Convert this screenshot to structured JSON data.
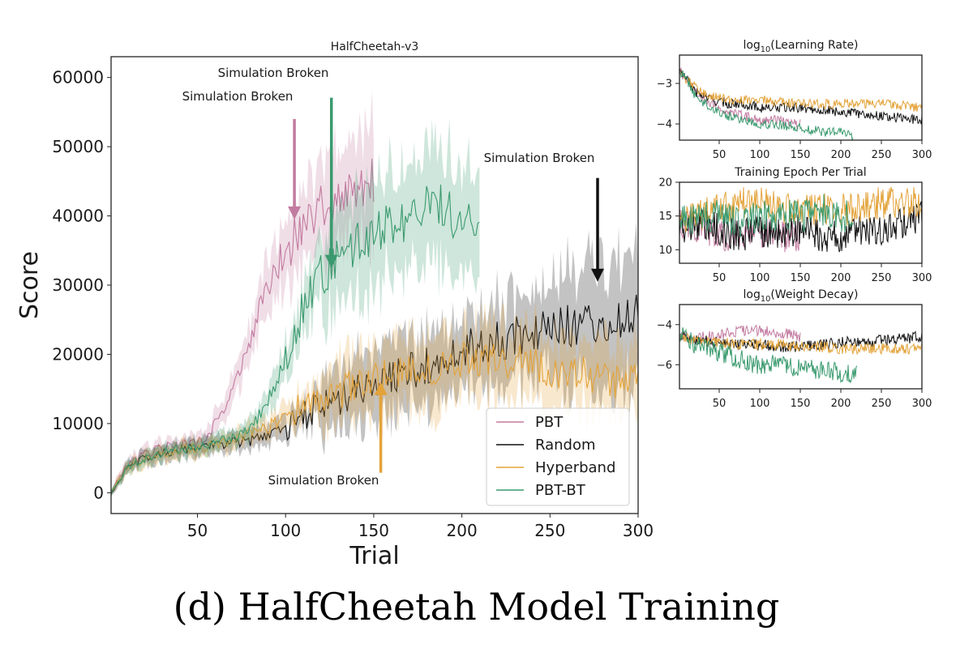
{
  "figure": {
    "caption": "(d) HalfCheetah Model Training"
  },
  "colors": {
    "PBT": "#c27ba0",
    "Random": "#111111",
    "Hyperband": "#e3a33a",
    "PBT-BT": "#3a9a6e"
  },
  "chart_data": [
    {
      "id": "main",
      "type": "line",
      "title": "HalfCheetah-v3",
      "xlabel": "Trial",
      "ylabel": "Score",
      "xlim": [
        1,
        300
      ],
      "ylim": [
        -3000,
        63000
      ],
      "xticks": [
        50,
        100,
        150,
        200,
        250,
        300
      ],
      "yticks": [
        0,
        10000,
        20000,
        30000,
        40000,
        50000,
        60000
      ],
      "grid": false,
      "legend": {
        "position": "bottom-right",
        "entries": [
          "PBT",
          "Random",
          "Hyperband",
          "PBT-BT"
        ]
      },
      "series": [
        {
          "name": "PBT",
          "band": true,
          "x": [
            1,
            10,
            20,
            30,
            40,
            50,
            55,
            60,
            70,
            80,
            90,
            100,
            110,
            120,
            130,
            140,
            150
          ],
          "values": [
            0,
            4000,
            5500,
            6500,
            7000,
            7200,
            7600,
            10000,
            15000,
            22000,
            30000,
            35000,
            38000,
            41000,
            42000,
            44000,
            45000
          ]
        },
        {
          "name": "Random",
          "band": true,
          "x": [
            1,
            10,
            20,
            30,
            40,
            50,
            60,
            70,
            80,
            90,
            100,
            110,
            120,
            130,
            140,
            150,
            160,
            170,
            180,
            190,
            200,
            210,
            220,
            230,
            240,
            250,
            260,
            270,
            280,
            290,
            300
          ],
          "values": [
            0,
            3500,
            5000,
            5800,
            6200,
            6500,
            7000,
            7200,
            7500,
            8500,
            9500,
            11000,
            12500,
            13500,
            14500,
            15500,
            16500,
            17500,
            18500,
            19500,
            20500,
            21500,
            22000,
            22500,
            23000,
            23500,
            24000,
            24500,
            25000,
            25500,
            26000
          ]
        },
        {
          "name": "Hyperband",
          "band": true,
          "x": [
            1,
            10,
            20,
            30,
            40,
            50,
            60,
            70,
            80,
            90,
            100,
            110,
            120,
            130,
            140,
            150,
            160,
            170,
            180,
            190,
            200,
            210,
            220,
            230,
            240,
            250,
            260,
            270,
            280,
            290,
            300
          ],
          "values": [
            0,
            3500,
            5000,
            5800,
            6200,
            6500,
            7000,
            7500,
            8500,
            9500,
            11000,
            12500,
            13500,
            14500,
            15500,
            16000,
            17000,
            17500,
            18000,
            18500,
            19000,
            19500,
            19500,
            19000,
            18500,
            18000,
            17500,
            17000,
            16500,
            16000,
            16500
          ]
        },
        {
          "name": "PBT-BT",
          "band": true,
          "x": [
            1,
            10,
            20,
            30,
            40,
            50,
            60,
            70,
            80,
            90,
            100,
            110,
            120,
            130,
            140,
            150,
            160,
            170,
            180,
            190,
            200,
            210
          ],
          "values": [
            0,
            3500,
            5000,
            5800,
            6300,
            6800,
            7200,
            7800,
            9500,
            13000,
            20000,
            27000,
            31000,
            34000,
            36000,
            38000,
            39000,
            40000,
            42000,
            41000,
            39000,
            38000
          ]
        }
      ],
      "annotations": [
        {
          "text": "Simulation Broken",
          "series": "PBT",
          "x": 105,
          "y": 39500
        },
        {
          "text": "Simulation Broken",
          "series": "PBT-BT",
          "x": 126,
          "y": 32500
        },
        {
          "text": "Simulation Broken",
          "series": "Random",
          "x": 277,
          "y": 30500
        },
        {
          "text": "Simulation Broken",
          "series": "Hyperband",
          "x": 154,
          "y": 16000
        }
      ]
    },
    {
      "id": "lr",
      "type": "line",
      "title": "log10(Learning Rate)",
      "title_base": "log",
      "title_sub": "10",
      "title_rest": "(Learning Rate)",
      "xlim": [
        1,
        300
      ],
      "ylim": [
        -4.4,
        -2.3
      ],
      "xticks": [
        50,
        100,
        150,
        200,
        250,
        300
      ],
      "yticks": [
        -3,
        -4
      ],
      "ytick_labels": [
        "−3",
        "−4"
      ],
      "series": [
        {
          "name": "PBT",
          "x": [
            1,
            10,
            20,
            40,
            60,
            80,
            100,
            120,
            140,
            150
          ],
          "values": [
            -2.7,
            -2.9,
            -3.2,
            -3.5,
            -3.7,
            -3.8,
            -3.9,
            -3.9,
            -4.0,
            -4.0
          ]
        },
        {
          "name": "Random",
          "x": [
            1,
            10,
            20,
            40,
            60,
            80,
            100,
            120,
            150,
            200,
            250,
            300
          ],
          "values": [
            -2.7,
            -2.9,
            -3.2,
            -3.4,
            -3.5,
            -3.5,
            -3.6,
            -3.6,
            -3.6,
            -3.7,
            -3.8,
            -3.9
          ]
        },
        {
          "name": "Hyperband",
          "x": [
            1,
            10,
            20,
            40,
            60,
            80,
            100,
            150,
            200,
            250,
            300
          ],
          "values": [
            -2.7,
            -2.9,
            -3.1,
            -3.3,
            -3.4,
            -3.4,
            -3.4,
            -3.5,
            -3.5,
            -3.5,
            -3.6
          ]
        },
        {
          "name": "PBT-BT",
          "x": [
            1,
            10,
            20,
            40,
            60,
            80,
            100,
            120,
            150,
            180,
            200,
            215
          ],
          "values": [
            -2.7,
            -2.9,
            -3.3,
            -3.6,
            -3.8,
            -3.9,
            -4.0,
            -4.0,
            -4.1,
            -4.2,
            -4.2,
            -4.3
          ]
        }
      ]
    },
    {
      "id": "epoch",
      "type": "line",
      "title": "Training Epoch Per Trial",
      "xlim": [
        1,
        300
      ],
      "ylim": [
        8,
        20
      ],
      "xticks": [
        50,
        100,
        150,
        200,
        250,
        300
      ],
      "yticks": [
        10,
        15,
        20
      ],
      "series": [
        {
          "name": "PBT",
          "x": [
            1,
            30,
            60,
            90,
            120,
            150
          ],
          "values": [
            14,
            13,
            12,
            13,
            12,
            12
          ]
        },
        {
          "name": "Random",
          "x": [
            1,
            25,
            50,
            75,
            100,
            125,
            150,
            175,
            200,
            225,
            250,
            275,
            300
          ],
          "values": [
            13,
            14,
            13,
            12,
            13,
            12,
            13,
            12,
            12,
            13,
            13,
            14,
            15
          ]
        },
        {
          "name": "Hyperband",
          "x": [
            1,
            25,
            50,
            75,
            100,
            125,
            150,
            175,
            200,
            225,
            250,
            275,
            300
          ],
          "values": [
            14,
            15,
            16,
            17,
            17,
            16,
            16,
            16,
            16,
            16,
            17,
            17,
            17
          ]
        },
        {
          "name": "PBT-BT",
          "x": [
            1,
            25,
            50,
            75,
            100,
            125,
            150,
            175,
            200,
            215
          ],
          "values": [
            14,
            15,
            15,
            14,
            15,
            15,
            15,
            16,
            15,
            15
          ]
        }
      ]
    },
    {
      "id": "wd",
      "type": "line",
      "title": "log10(Weight Decay)",
      "title_base": "log",
      "title_sub": "10",
      "title_rest": "(Weight Decay)",
      "xlim": [
        1,
        300
      ],
      "ylim": [
        -7.2,
        -3.0
      ],
      "xticks": [
        50,
        100,
        150,
        200,
        250,
        300
      ],
      "yticks": [
        -4,
        -6
      ],
      "ytick_labels": [
        "−4",
        "−6"
      ],
      "series": [
        {
          "name": "PBT",
          "x": [
            1,
            20,
            40,
            60,
            80,
            100,
            120,
            140,
            150
          ],
          "values": [
            -4.5,
            -4.7,
            -4.5,
            -4.4,
            -4.3,
            -4.3,
            -4.4,
            -4.5,
            -4.6
          ]
        },
        {
          "name": "Random",
          "x": [
            1,
            25,
            50,
            75,
            100,
            125,
            150,
            175,
            200,
            225,
            250,
            275,
            300
          ],
          "values": [
            -4.6,
            -4.8,
            -4.9,
            -5.0,
            -5.0,
            -5.1,
            -5.1,
            -5.0,
            -4.9,
            -4.8,
            -4.8,
            -4.7,
            -4.6
          ]
        },
        {
          "name": "Hyperband",
          "x": [
            1,
            25,
            50,
            75,
            100,
            125,
            150,
            175,
            200,
            225,
            250,
            275,
            300
          ],
          "values": [
            -4.7,
            -4.8,
            -4.9,
            -5.0,
            -5.0,
            -5.0,
            -5.1,
            -5.1,
            -5.2,
            -5.2,
            -5.2,
            -5.2,
            -5.2
          ]
        },
        {
          "name": "PBT-BT",
          "x": [
            1,
            20,
            40,
            60,
            80,
            100,
            120,
            140,
            160,
            180,
            200,
            220
          ],
          "values": [
            -4.5,
            -5.0,
            -5.3,
            -5.5,
            -5.8,
            -6.0,
            -6.0,
            -6.1,
            -6.2,
            -6.3,
            -6.4,
            -6.5
          ]
        }
      ]
    }
  ]
}
